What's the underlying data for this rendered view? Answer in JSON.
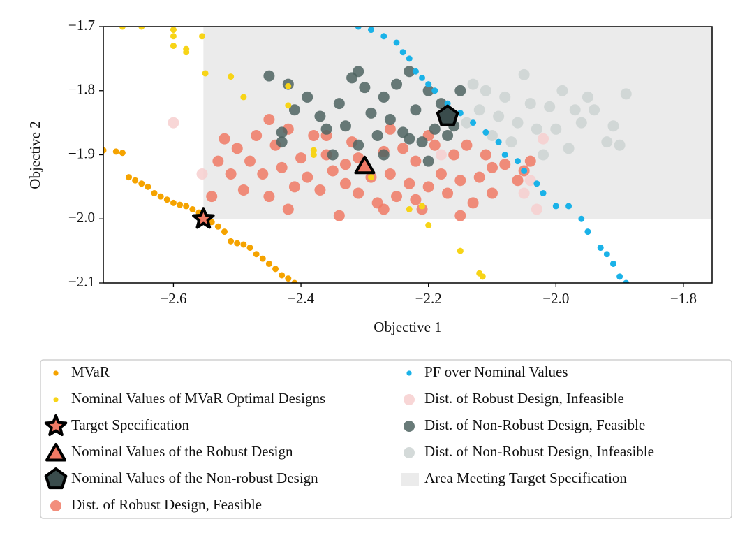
{
  "chart_data": {
    "type": "scatter",
    "xlabel": "Objective 1",
    "ylabel": "Objective 2",
    "xlim": [
      -2.71,
      -1.755
    ],
    "ylim": [
      -2.1,
      -1.7
    ],
    "xticks": [
      {
        "value": -2.6,
        "label": "−2.6"
      },
      {
        "value": -2.4,
        "label": "−2.4"
      },
      {
        "value": -2.2,
        "label": "−2.2"
      },
      {
        "value": -2.0,
        "label": "−2.0"
      },
      {
        "value": -1.8,
        "label": "−1.8"
      }
    ],
    "yticks": [
      {
        "value": -1.7,
        "label": "−1.7"
      },
      {
        "value": -1.8,
        "label": "−1.8"
      },
      {
        "value": -1.9,
        "label": "−1.9"
      },
      {
        "value": -2.0,
        "label": "−2.0"
      },
      {
        "value": -2.1,
        "label": "−2.1"
      }
    ],
    "series": [
      {
        "name": "MVaR",
        "marker": "dot",
        "color": "#f5a300",
        "x": [
          -2.71,
          -2.69,
          -2.68,
          -2.67,
          -2.66,
          -2.65,
          -2.64,
          -2.63,
          -2.62,
          -2.61,
          -2.6,
          -2.59,
          -2.58,
          -2.57,
          -2.56,
          -2.55,
          -2.54,
          -2.53,
          -2.52,
          -2.51,
          -2.5,
          -2.49,
          -2.48,
          -2.47,
          -2.46,
          -2.45,
          -2.44,
          -2.43,
          -2.42,
          -2.41
        ],
        "y": [
          -1.893,
          -1.895,
          -1.897,
          -1.935,
          -1.94,
          -1.945,
          -1.95,
          -1.96,
          -1.965,
          -1.97,
          -1.975,
          -1.978,
          -1.98,
          -1.985,
          -1.99,
          -1.998,
          -2.005,
          -2.012,
          -2.02,
          -2.035,
          -2.038,
          -2.04,
          -2.045,
          -2.055,
          -2.062,
          -2.07,
          -2.078,
          -2.088,
          -2.093,
          -2.1
        ]
      },
      {
        "name": "Nominal Values of MVaR Optimal Designs",
        "marker": "dot",
        "color": "#f7d417",
        "x": [
          -2.68,
          -2.65,
          -2.6,
          -2.6,
          -2.6,
          -2.58,
          -2.58,
          -2.555,
          -2.55,
          -2.51,
          -2.49,
          -2.42,
          -2.42,
          -2.38,
          -2.38,
          -2.29,
          -2.23,
          -2.21,
          -2.2,
          -2.15,
          -2.12,
          -2.115
        ],
        "y": [
          -1.7,
          -1.7,
          -1.705,
          -1.715,
          -1.73,
          -1.735,
          -1.74,
          -1.715,
          -1.773,
          -1.778,
          -1.81,
          -1.793,
          -1.823,
          -1.893,
          -1.9,
          -1.935,
          -1.985,
          -1.98,
          -2.01,
          -2.05,
          -2.085,
          -2.09
        ]
      },
      {
        "name": "Target Specification",
        "marker": "star",
        "color": "#f07a65",
        "x": [
          -2.553
        ],
        "y": [
          -2.0
        ]
      },
      {
        "name": "Nominal Values of the Robust Design",
        "marker": "triangle",
        "color": "#f07a65",
        "x": [
          -2.3
        ],
        "y": [
          -1.92
        ]
      },
      {
        "name": "Nominal Values of the Non-robust Design",
        "marker": "pentagon",
        "color": "#3a4c4c",
        "x": [
          -2.17
        ],
        "y": [
          -1.84
        ]
      },
      {
        "name": "Dist. of Robust Design, Feasible",
        "marker": "circle",
        "color": "#f07a65",
        "x": [
          -2.54,
          -2.53,
          -2.52,
          -2.51,
          -2.5,
          -2.49,
          -2.48,
          -2.47,
          -2.46,
          -2.45,
          -2.44,
          -2.43,
          -2.42,
          -2.41,
          -2.4,
          -2.39,
          -2.38,
          -2.37,
          -2.36,
          -2.35,
          -2.34,
          -2.33,
          -2.32,
          -2.31,
          -2.29,
          -2.28,
          -2.27,
          -2.26,
          -2.25,
          -2.24,
          -2.23,
          -2.22,
          -2.21,
          -2.2,
          -2.19,
          -2.18,
          -2.17,
          -2.16,
          -2.15,
          -2.14,
          -2.13,
          -2.12,
          -2.11,
          -2.1,
          -2.08,
          -2.06,
          -2.05,
          -2.04,
          -2.42,
          -2.36,
          -2.31,
          -2.26,
          -2.2,
          -2.15,
          -2.1,
          -2.45,
          -2.33,
          -2.27,
          -2.22
        ],
        "y": [
          -1.965,
          -1.91,
          -1.875,
          -1.93,
          -1.89,
          -1.955,
          -1.91,
          -1.87,
          -1.93,
          -1.965,
          -1.885,
          -1.92,
          -1.86,
          -1.95,
          -1.905,
          -1.935,
          -1.87,
          -1.955,
          -1.9,
          -1.925,
          -1.995,
          -1.945,
          -1.88,
          -1.96,
          -1.935,
          -1.975,
          -1.895,
          -1.93,
          -1.965,
          -1.89,
          -1.945,
          -1.91,
          -1.985,
          -1.95,
          -1.885,
          -1.93,
          -1.96,
          -1.9,
          -1.94,
          -1.885,
          -1.975,
          -1.935,
          -1.9,
          -1.96,
          -1.915,
          -1.94,
          -1.925,
          -1.91,
          -1.985,
          -1.87,
          -1.905,
          -1.86,
          -1.87,
          -1.995,
          -1.92,
          -1.845,
          -1.915,
          -1.985,
          -1.97
        ]
      },
      {
        "name": "PF over Nominal Values",
        "marker": "dot",
        "color": "#1ab2e8",
        "x": [
          -2.31,
          -2.29,
          -2.27,
          -2.25,
          -2.24,
          -2.23,
          -2.22,
          -2.21,
          -2.2,
          -2.19,
          -2.17,
          -2.15,
          -2.13,
          -2.11,
          -2.09,
          -2.08,
          -2.06,
          -2.05,
          -2.03,
          -2.02,
          -2.0,
          -1.98,
          -1.96,
          -1.95,
          -1.93,
          -1.92,
          -1.91,
          -1.9,
          -1.89
        ],
        "y": [
          -1.7,
          -1.705,
          -1.715,
          -1.725,
          -1.74,
          -1.75,
          -1.77,
          -1.78,
          -1.79,
          -1.8,
          -1.82,
          -1.835,
          -1.85,
          -1.865,
          -1.88,
          -1.9,
          -1.91,
          -1.925,
          -1.945,
          -1.96,
          -1.98,
          -1.98,
          -2.0,
          -2.02,
          -2.045,
          -2.055,
          -2.07,
          -2.09,
          -2.1
        ]
      },
      {
        "name": "Dist. of Robust Design, Infeasible",
        "marker": "circle",
        "color": "#f7cfcf",
        "x": [
          -2.6,
          -2.555,
          -2.18,
          -2.05,
          -2.04,
          -2.03,
          -2.02
        ],
        "y": [
          -1.85,
          -1.93,
          -1.9,
          -1.96,
          -1.94,
          -1.985,
          -1.875
        ]
      },
      {
        "name": "Dist. of Non-Robust Design, Feasible",
        "marker": "circle",
        "color": "#4f6461",
        "x": [
          -2.45,
          -2.43,
          -2.42,
          -2.41,
          -2.39,
          -2.37,
          -2.36,
          -2.34,
          -2.33,
          -2.32,
          -2.31,
          -2.3,
          -2.29,
          -2.28,
          -2.27,
          -2.26,
          -2.25,
          -2.24,
          -2.23,
          -2.22,
          -2.21,
          -2.2,
          -2.19,
          -2.18,
          -2.16,
          -2.15,
          -2.35,
          -2.27,
          -2.2,
          -2.43,
          -2.31,
          -2.23,
          -2.17
        ],
        "y": [
          -1.777,
          -1.88,
          -1.79,
          -1.83,
          -1.81,
          -1.84,
          -1.86,
          -1.82,
          -1.855,
          -1.78,
          -1.885,
          -1.795,
          -1.835,
          -1.87,
          -1.81,
          -1.845,
          -1.79,
          -1.865,
          -1.77,
          -1.83,
          -1.88,
          -1.8,
          -1.86,
          -1.82,
          -1.855,
          -1.8,
          -1.9,
          -1.9,
          -1.91,
          -1.865,
          -1.77,
          -1.875,
          -1.87
        ]
      },
      {
        "name": "Dist. of Non-Robust Design, Infeasible",
        "marker": "circle",
        "color": "#ccd3d2",
        "x": [
          -2.14,
          -2.13,
          -2.12,
          -2.11,
          -2.1,
          -2.09,
          -2.08,
          -2.07,
          -2.06,
          -2.05,
          -2.04,
          -2.03,
          -2.02,
          -2.01,
          -2.0,
          -1.99,
          -1.98,
          -1.97,
          -1.96,
          -1.95,
          -1.94,
          -1.92,
          -1.91,
          -1.9,
          -1.89
        ],
        "y": [
          -1.85,
          -1.79,
          -1.83,
          -1.8,
          -1.87,
          -1.84,
          -1.81,
          -1.88,
          -1.85,
          -1.775,
          -1.82,
          -1.86,
          -1.9,
          -1.825,
          -1.86,
          -1.8,
          -1.89,
          -1.83,
          -1.85,
          -1.81,
          -1.83,
          -1.88,
          -1.855,
          -1.885,
          -1.805
        ]
      },
      {
        "name": "Area Meeting Target Specification",
        "marker": "area",
        "color": "#ebebeb",
        "x": [
          -2.553,
          -1.755
        ],
        "y": [
          -2.0,
          -1.7
        ]
      }
    ],
    "legend_rows": 6
  }
}
